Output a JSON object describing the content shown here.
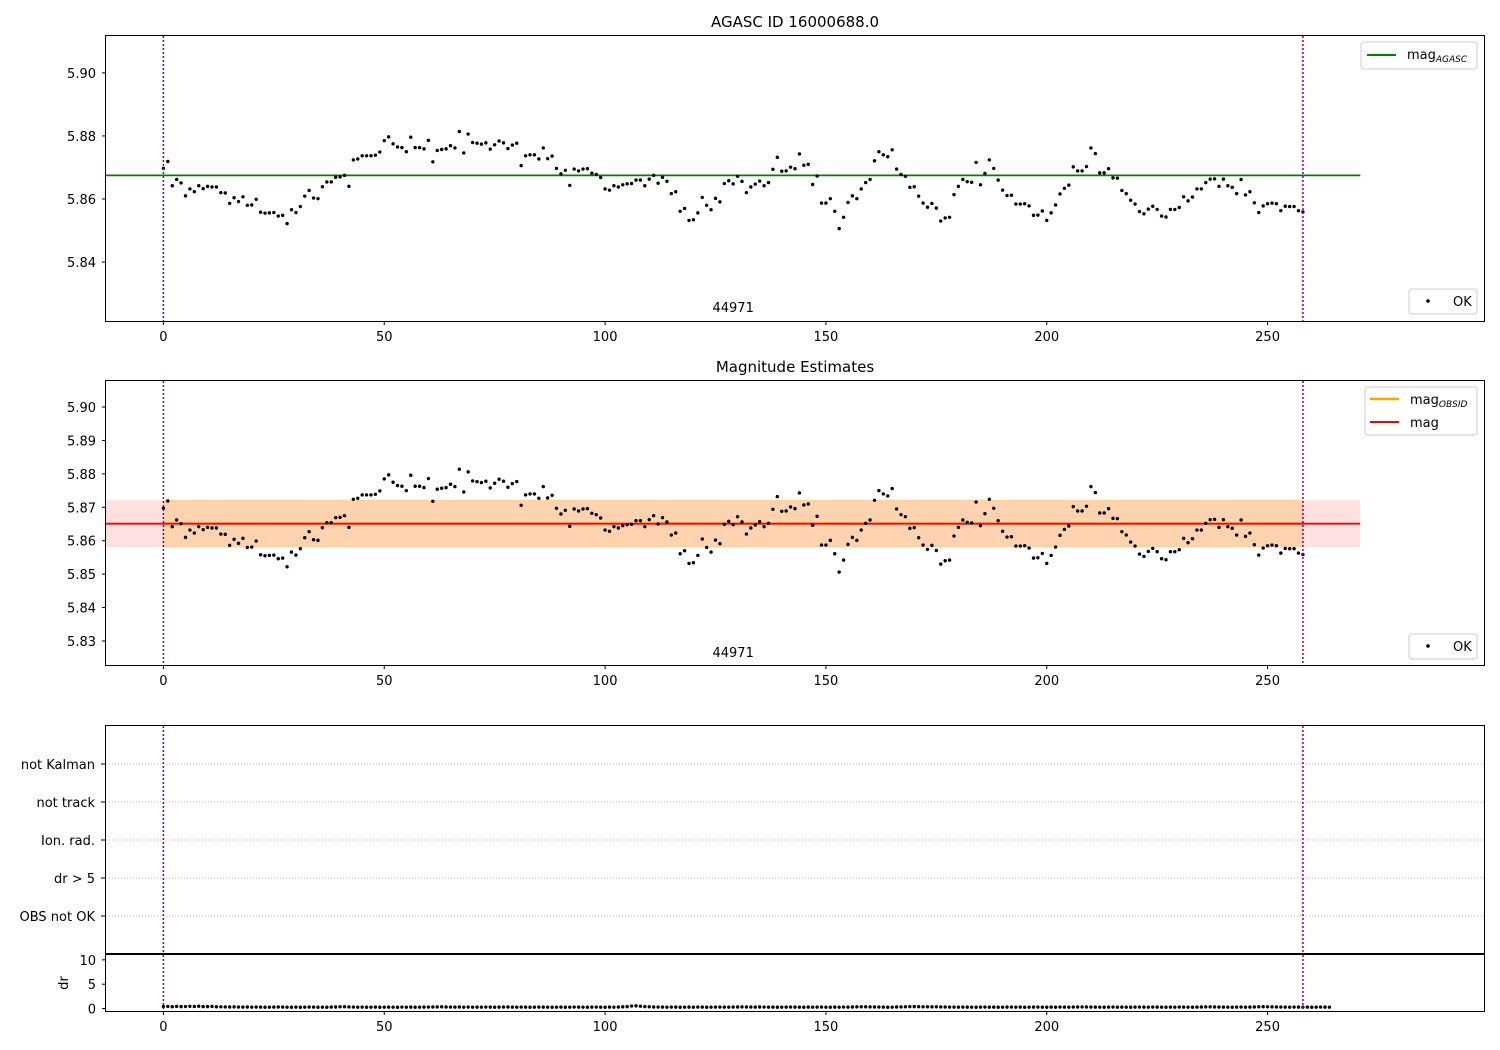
{
  "chart_data": [
    {
      "type": "scatter",
      "title": "AGASC ID 16000688.0",
      "xlim": [
        -13,
        299
      ],
      "ylim": [
        5.8213,
        5.9117
      ],
      "yticks": [
        5.84,
        5.86,
        5.88,
        5.9
      ],
      "ytick_labels": [
        "5.84",
        "5.86",
        "5.88",
        "5.90"
      ],
      "xticks": [
        0,
        50,
        100,
        150,
        200,
        250
      ],
      "xtick_labels": [
        "0",
        "50",
        "100",
        "150",
        "200",
        "250"
      ],
      "series": [
        {
          "name": "OK",
          "kind": "points",
          "color": "#000000",
          "y": "observed_mags"
        },
        {
          "name": "mag_AGASC",
          "kind": "hline",
          "y": 5.8675,
          "x_range": [
            -13,
            271
          ],
          "color": "#008000"
        }
      ],
      "obsid_bounds": [
        0,
        258
      ],
      "obsid_label": "44971",
      "legend_top": [
        {
          "label": "mag",
          "sub": "AGASC",
          "color": "#008000"
        }
      ],
      "legend_bottom": [
        {
          "label": "OK",
          "color": "#000000"
        }
      ],
      "legend_placement": [
        "upper right",
        "lower right"
      ]
    },
    {
      "type": "scatter",
      "title": "Magnitude Estimates",
      "xlim": [
        -13,
        299
      ],
      "ylim": [
        5.8228,
        5.9078
      ],
      "yticks": [
        5.83,
        5.84,
        5.85,
        5.86,
        5.87,
        5.88,
        5.89,
        5.9
      ],
      "ytick_labels": [
        "5.83",
        "5.84",
        "5.85",
        "5.86",
        "5.87",
        "5.88",
        "5.89",
        "5.90"
      ],
      "xticks": [
        0,
        50,
        100,
        150,
        200,
        250
      ],
      "xtick_labels": [
        "0",
        "50",
        "100",
        "150",
        "200",
        "250"
      ],
      "series": [
        {
          "name": "OK",
          "kind": "points",
          "color": "#000000",
          "y": "observed_mags"
        },
        {
          "name": "mag_OBSID",
          "kind": "band",
          "center": 5.8651,
          "low": 5.8581,
          "high": 5.8721,
          "x_range": [
            0,
            258
          ],
          "color": "#ffa500"
        },
        {
          "name": "mag",
          "kind": "band",
          "center": 5.8651,
          "low": 5.8581,
          "high": 5.8721,
          "x_range": [
            -13,
            271
          ],
          "color": "#ff0000"
        }
      ],
      "obsid_bounds": [
        0,
        258
      ],
      "obsid_label": "44971",
      "legend_top": [
        {
          "label": "mag",
          "sub": "OBSID",
          "color": "#ffa500"
        },
        {
          "label": "mag",
          "sub": "",
          "color": "#ff0000"
        }
      ],
      "legend_bottom": [
        {
          "label": "OK",
          "color": "#000000"
        }
      ],
      "legend_placement": [
        "upper right",
        "lower right"
      ]
    },
    {
      "type": "scatter",
      "title": "",
      "xlim": [
        -13,
        299
      ],
      "flags": [
        "OBS not OK",
        "dr > 5",
        "Ion. rad.",
        "not track",
        "not Kalman"
      ],
      "flag_points": []
    },
    {
      "type": "scatter",
      "title": "",
      "xlim": [
        -13,
        299
      ],
      "ylim": [
        -0.5,
        11
      ],
      "yticks": [
        0,
        5,
        10
      ],
      "ytick_labels": [
        "0",
        "5",
        "10"
      ],
      "ylabel": "dr",
      "xticks": [
        0,
        50,
        100,
        150,
        200,
        250
      ],
      "xtick_labels": [
        "0",
        "50",
        "100",
        "150",
        "200",
        "250"
      ],
      "series": [
        {
          "name": "dr",
          "kind": "points",
          "color": "#000000",
          "y": "dr_values"
        }
      ]
    }
  ],
  "observed_mags": [
    5.8697,
    5.8719,
    5.8642,
    5.8662,
    5.8651,
    5.861,
    5.8632,
    5.8623,
    5.8642,
    5.8633,
    5.864,
    5.8638,
    5.8638,
    5.862,
    5.8619,
    5.8586,
    5.8604,
    5.8592,
    5.8607,
    5.858,
    5.8581,
    5.8599,
    5.8558,
    5.8555,
    5.8556,
    5.8557,
    5.8546,
    5.8548,
    5.8522,
    5.8566,
    5.8557,
    5.8576,
    5.8609,
    5.8627,
    5.8603,
    5.8601,
    5.8639,
    5.8654,
    5.8654,
    5.8669,
    5.867,
    5.8675,
    5.864,
    5.8724,
    5.8727,
    5.8737,
    5.8737,
    5.8737,
    5.8739,
    5.8749,
    5.8785,
    5.8797,
    5.8775,
    5.8765,
    5.8763,
    5.875,
    5.8796,
    5.8763,
    5.8763,
    5.8759,
    5.8786,
    5.8718,
    5.8754,
    5.8757,
    5.8759,
    5.8769,
    5.8762,
    5.8814,
    5.8746,
    5.8806,
    5.8779,
    5.8777,
    5.8774,
    5.8778,
    5.8758,
    5.8772,
    5.8784,
    5.8778,
    5.876,
    5.8771,
    5.8777,
    5.8706,
    5.8737,
    5.874,
    5.874,
    5.8727,
    5.8762,
    5.8728,
    5.8736,
    5.8697,
    5.868,
    5.8691,
    5.8643,
    5.8695,
    5.8689,
    5.8695,
    5.8696,
    5.8682,
    5.8678,
    5.8668,
    5.8632,
    5.8628,
    5.8642,
    5.8638,
    5.8645,
    5.8648,
    5.8649,
    5.866,
    5.866,
    5.8642,
    5.8663,
    5.8675,
    5.865,
    5.8669,
    5.8656,
    5.8617,
    5.8623,
    5.8561,
    5.857,
    5.8532,
    5.8534,
    5.8556,
    5.8605,
    5.858,
    5.8566,
    5.8602,
    5.8591,
    5.8649,
    5.8658,
    5.8648,
    5.8672,
    5.8656,
    5.862,
    5.8638,
    5.8647,
    5.8657,
    5.8642,
    5.8652,
    5.8694,
    5.8732,
    5.8688,
    5.8689,
    5.8701,
    5.8696,
    5.8743,
    5.8707,
    5.871,
    5.8646,
    5.8673,
    5.8587,
    5.8587,
    5.8601,
    5.8561,
    5.8506,
    5.8542,
    5.8589,
    5.861,
    5.8601,
    5.8632,
    5.8652,
    5.8662,
    5.8721,
    5.875,
    5.874,
    5.8734,
    5.8756,
    5.8695,
    5.8678,
    5.8672,
    5.8637,
    5.8639,
    5.8609,
    5.8587,
    5.8574,
    5.8586,
    5.8571,
    5.853,
    5.854,
    5.8542,
    5.8614,
    5.864,
    5.8662,
    5.8655,
    5.8653,
    5.8716,
    5.8645,
    5.8681,
    5.8724,
    5.8697,
    5.866,
    5.8628,
    5.8611,
    5.8612,
    5.8584,
    5.8584,
    5.8585,
    5.8578,
    5.8548,
    5.8549,
    5.8562,
    5.8532,
    5.8556,
    5.8581,
    5.8616,
    5.8634,
    5.8644,
    5.8702,
    5.8689,
    5.8689,
    5.8703,
    5.8762,
    5.8744,
    5.8683,
    5.8683,
    5.8696,
    5.8667,
    5.8666,
    5.8627,
    5.8617,
    5.8596,
    5.8584,
    5.856,
    5.8553,
    5.8568,
    5.8577,
    5.8567,
    5.8546,
    5.8543,
    5.8567,
    5.8567,
    5.8573,
    5.8607,
    5.8594,
    5.8606,
    5.8632,
    5.8632,
    5.8652,
    5.8663,
    5.8664,
    5.864,
    5.8663,
    5.8642,
    5.8637,
    5.8617,
    5.8662,
    5.8613,
    5.8623,
    5.8588,
    5.8557,
    5.8578,
    5.8585,
    5.8587,
    5.8585,
    5.8563,
    5.8577,
    5.8576,
    5.8576,
    5.8563,
    5.8559
  ],
  "dr_values": [
    0.42,
    0.44,
    0.38,
    0.45,
    0.4,
    0.42,
    0.47,
    0.43,
    0.48,
    0.41,
    0.4,
    0.44,
    0.37,
    0.36,
    0.34,
    0.33,
    0.35,
    0.31,
    0.3,
    0.32,
    0.29,
    0.31,
    0.3,
    0.28,
    0.29,
    0.3,
    0.33,
    0.31,
    0.29,
    0.28,
    0.3,
    0.27,
    0.29,
    0.31,
    0.3,
    0.28,
    0.29,
    0.27,
    0.3,
    0.32,
    0.36,
    0.38,
    0.34,
    0.31,
    0.29,
    0.3,
    0.28,
    0.29,
    0.3,
    0.27,
    0.29,
    0.3,
    0.29,
    0.28,
    0.31,
    0.29,
    0.3,
    0.28,
    0.29,
    0.3,
    0.31,
    0.33,
    0.34,
    0.36,
    0.33,
    0.31,
    0.3,
    0.32,
    0.29,
    0.31,
    0.29,
    0.3,
    0.29,
    0.31,
    0.3,
    0.28,
    0.3,
    0.31,
    0.32,
    0.3,
    0.29,
    0.31,
    0.3,
    0.28,
    0.29,
    0.31,
    0.3,
    0.29,
    0.28,
    0.29,
    0.3,
    0.28,
    0.29,
    0.31,
    0.3,
    0.29,
    0.28,
    0.3,
    0.31,
    0.29,
    0.28,
    0.3,
    0.29,
    0.31,
    0.35,
    0.4,
    0.52,
    0.55,
    0.48,
    0.41,
    0.36,
    0.33,
    0.31,
    0.3,
    0.29,
    0.31,
    0.3,
    0.28,
    0.29,
    0.3,
    0.29,
    0.31,
    0.3,
    0.28,
    0.29,
    0.3,
    0.31,
    0.3,
    0.29,
    0.31,
    0.32,
    0.34,
    0.33,
    0.31,
    0.3,
    0.32,
    0.31,
    0.29,
    0.3,
    0.28,
    0.29,
    0.3,
    0.31,
    0.3,
    0.29,
    0.28,
    0.3,
    0.29,
    0.3,
    0.31,
    0.29,
    0.28,
    0.3,
    0.29,
    0.31,
    0.3,
    0.32,
    0.35,
    0.37,
    0.36,
    0.34,
    0.33,
    0.31,
    0.3,
    0.28,
    0.29,
    0.32,
    0.34,
    0.37,
    0.39,
    0.4,
    0.38,
    0.36,
    0.37,
    0.35,
    0.36,
    0.34,
    0.33,
    0.31,
    0.3,
    0.29,
    0.31,
    0.3,
    0.29,
    0.28,
    0.3,
    0.31,
    0.29,
    0.3,
    0.28,
    0.29,
    0.3,
    0.31,
    0.29,
    0.3,
    0.28,
    0.29,
    0.3,
    0.31,
    0.29,
    0.28,
    0.3,
    0.29,
    0.31,
    0.3,
    0.29,
    0.31,
    0.33,
    0.34,
    0.32,
    0.31,
    0.3,
    0.29,
    0.28,
    0.3,
    0.31,
    0.29,
    0.3,
    0.29,
    0.28,
    0.3,
    0.31,
    0.3,
    0.29,
    0.31,
    0.3,
    0.29,
    0.28,
    0.3,
    0.29,
    0.31,
    0.3,
    0.29,
    0.28,
    0.3,
    0.32,
    0.34,
    0.35,
    0.33,
    0.31,
    0.3,
    0.29,
    0.28,
    0.3,
    0.31,
    0.29,
    0.3,
    0.33,
    0.36,
    0.38,
    0.37,
    0.35,
    0.33,
    0.31,
    0.3,
    0.29,
    0.31,
    0.3,
    0.29,
    0.3,
    0.28,
    0.29,
    0.31,
    0.3,
    0.29
  ]
}
